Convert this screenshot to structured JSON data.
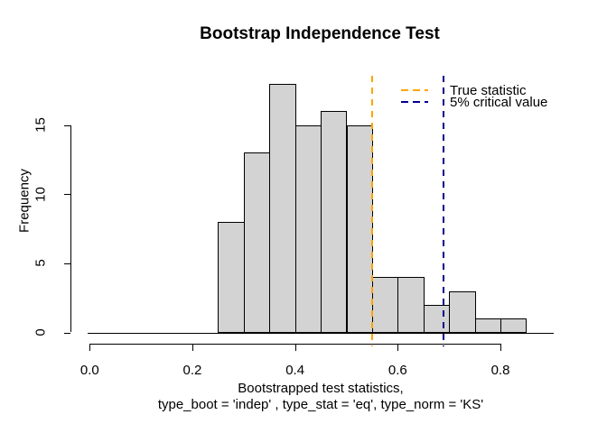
{
  "chart_data": {
    "type": "bar",
    "variant": "histogram",
    "title": "Bootstrap Independence Test",
    "xlabel_line1": "Bootstrapped test statistics,",
    "xlabel_line2": "type_boot = 'indep' , type_stat = 'eq', type_norm = 'KS'",
    "ylabel": "Frequency",
    "bin_edges": [
      0.25,
      0.3,
      0.35,
      0.4,
      0.45,
      0.5,
      0.55,
      0.6,
      0.65,
      0.7,
      0.75,
      0.8,
      0.85
    ],
    "counts": [
      8,
      13,
      18,
      15,
      16,
      15,
      4,
      4,
      2,
      3,
      1,
      1
    ],
    "xlim": [
      0,
      0.9
    ],
    "ylim": [
      0,
      18
    ],
    "x_ticks": [
      {
        "value": 0.0,
        "label": "0.0"
      },
      {
        "value": 0.2,
        "label": "0.2"
      },
      {
        "value": 0.4,
        "label": "0.4"
      },
      {
        "value": 0.6,
        "label": "0.6"
      },
      {
        "value": 0.8,
        "label": "0.8"
      }
    ],
    "y_ticks": [
      {
        "value": 0,
        "label": "0"
      },
      {
        "value": 5,
        "label": "5"
      },
      {
        "value": 10,
        "label": "10"
      },
      {
        "value": 15,
        "label": "15"
      }
    ],
    "grid": false,
    "bar_fill": "#D3D3D3",
    "bar_border": "#000000",
    "vlines": [
      {
        "name": "true-statistic-line",
        "value": 0.55,
        "color": "#FFA500",
        "style": "dashed"
      },
      {
        "name": "critical-value-line",
        "value": 0.69,
        "color": "#00008B",
        "style": "dashed"
      }
    ],
    "legend": {
      "position": "top-right",
      "entries": [
        {
          "label": "True statistic",
          "color": "#FFA500",
          "line": "dashed"
        },
        {
          "label": "5% critical value",
          "color": "#00008B",
          "line": "dashed"
        }
      ]
    }
  }
}
